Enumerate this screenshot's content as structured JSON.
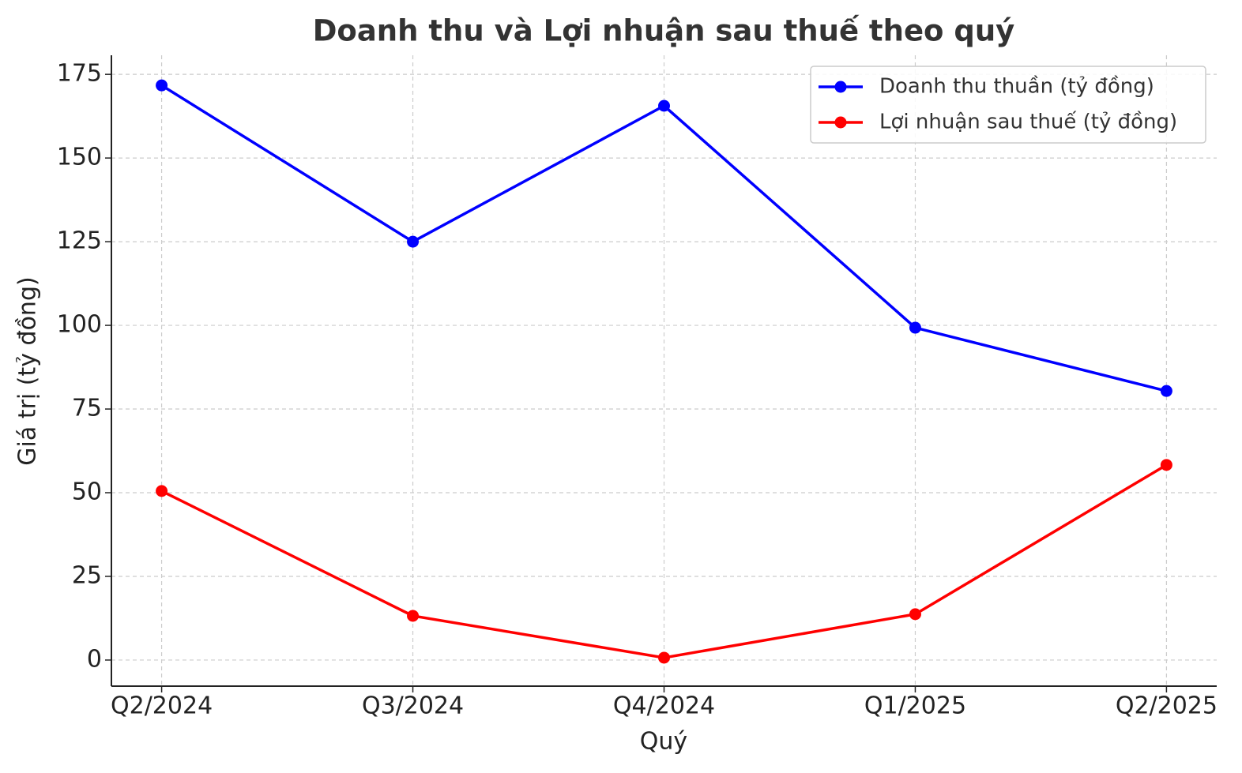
{
  "chart_data": {
    "type": "line",
    "title": "Doanh thu và Lợi nhuận sau thuế theo quý",
    "x_label": "Quý",
    "y_label": "Giá trị (tỷ đồng)",
    "categories": [
      "Q2/2024",
      "Q3/2024",
      "Q4/2024",
      "Q1/2025",
      "Q2/2025"
    ],
    "series": [
      {
        "name": "Doanh thu thuần (tỷ đồng)",
        "color": "#0000ff",
        "values": [
          171.7,
          125,
          165.6,
          99.3,
          80.4
        ]
      },
      {
        "name": "Lợi nhuận sau thuế (tỷ đồng)",
        "color": "#ff0000",
        "values": [
          50.5,
          13.2,
          0.7,
          13.7,
          58.3
        ]
      }
    ],
    "ylim": [
      -7.8,
      180.7
    ],
    "yticks": [
      0,
      25,
      50,
      75,
      100,
      125,
      150,
      175
    ],
    "grid": true,
    "legend": "upper right"
  }
}
